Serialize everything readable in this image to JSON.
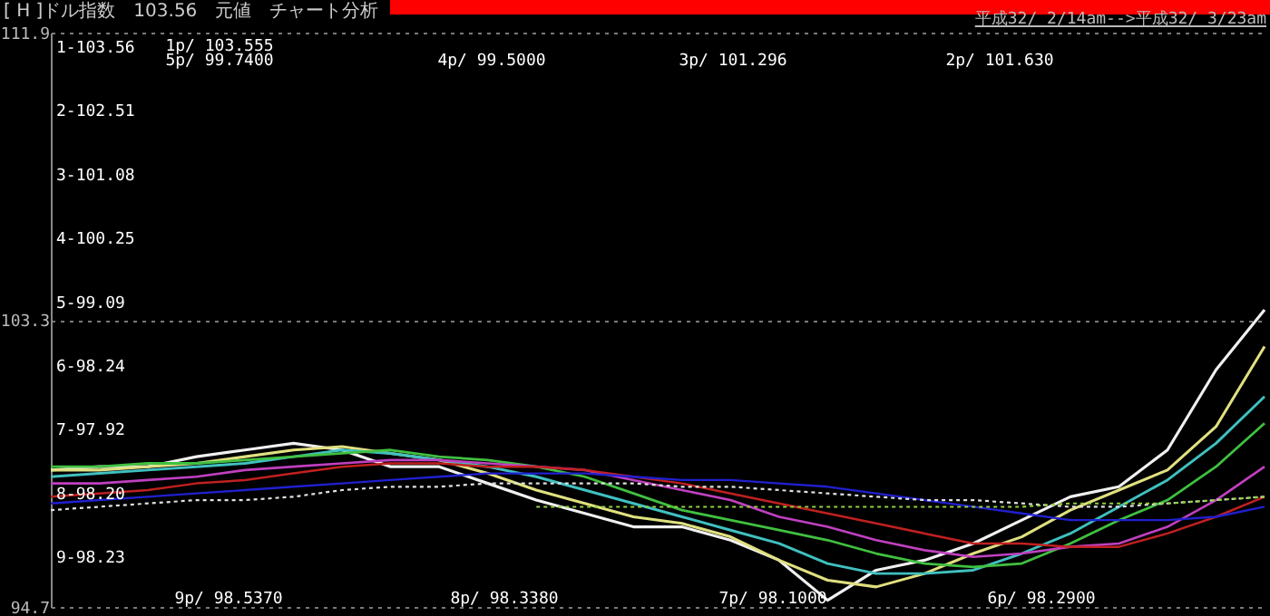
{
  "chart_data": {
    "type": "line",
    "title": "[ H ]ドル指数　103.56　元値　チャート分析",
    "subtitle": "平成32/ 2/14am-->平成32/ 3/23am",
    "categories": [
      null,
      null,
      null,
      null,
      null,
      null,
      null,
      null,
      null,
      null,
      null,
      null,
      null,
      null,
      null,
      null,
      null,
      null,
      null,
      null,
      null,
      null,
      null,
      null,
      null,
      null
    ],
    "series": [
      {
        "color": "#f0f0f0",
        "values": [
          98.8,
          98.9,
          98.9,
          99.2,
          99.4,
          99.6,
          99.4,
          98.9,
          98.9,
          98.4,
          97.9,
          97.5,
          97.1,
          97.1,
          96.7,
          96.1,
          94.9,
          95.8,
          96.1,
          96.6,
          97.3,
          98.0,
          98.3,
          99.4,
          101.8,
          103.6
        ]
      },
      {
        "color": "#e0e080",
        "values": [
          98.8,
          98.8,
          98.9,
          99.0,
          99.2,
          99.4,
          99.5,
          99.3,
          99.1,
          98.7,
          98.2,
          97.8,
          97.4,
          97.2,
          96.8,
          96.1,
          95.5,
          95.3,
          95.7,
          96.3,
          96.8,
          97.6,
          98.2,
          98.8,
          100.1,
          102.5
        ]
      },
      {
        "color": "#40c0c0",
        "values": [
          98.6,
          98.7,
          98.8,
          98.9,
          99.0,
          99.2,
          99.4,
          99.3,
          99.1,
          98.9,
          98.6,
          98.2,
          97.8,
          97.4,
          97.0,
          96.6,
          96.0,
          95.7,
          95.7,
          95.8,
          96.3,
          96.9,
          97.7,
          98.5,
          99.6,
          101.0
        ]
      },
      {
        "color": "#40c040",
        "values": [
          98.9,
          98.9,
          99.0,
          99.0,
          99.1,
          99.2,
          99.3,
          99.4,
          99.2,
          99.1,
          98.9,
          98.6,
          98.1,
          97.6,
          97.3,
          97.0,
          96.7,
          96.3,
          96.0,
          95.9,
          96.0,
          96.6,
          97.3,
          97.9,
          98.9,
          100.2
        ]
      },
      {
        "color": "#c040c0",
        "values": [
          98.4,
          98.4,
          98.5,
          98.6,
          98.8,
          98.9,
          99.0,
          99.1,
          99.1,
          99.0,
          98.9,
          98.8,
          98.5,
          98.2,
          97.9,
          97.4,
          97.1,
          96.7,
          96.4,
          96.2,
          96.3,
          96.5,
          96.6,
          97.1,
          97.9,
          98.9
        ]
      },
      {
        "color": "#c02020",
        "values": [
          98.0,
          98.1,
          98.2,
          98.4,
          98.5,
          98.7,
          98.9,
          99.0,
          99.0,
          98.9,
          98.9,
          98.8,
          98.6,
          98.4,
          98.1,
          97.8,
          97.5,
          97.2,
          96.9,
          96.6,
          96.6,
          96.5,
          96.5,
          96.9,
          97.4,
          98.0
        ]
      },
      {
        "color": "#2020d0",
        "values": [
          97.8,
          97.9,
          98.0,
          98.1,
          98.2,
          98.3,
          98.4,
          98.5,
          98.6,
          98.7,
          98.7,
          98.7,
          98.6,
          98.5,
          98.5,
          98.4,
          98.3,
          98.1,
          97.9,
          97.7,
          97.5,
          97.3,
          97.3,
          97.3,
          97.4,
          97.7
        ]
      },
      {
        "color": "#e0e0e0",
        "line_style": "dotted",
        "values": [
          97.6,
          97.7,
          97.8,
          97.9,
          97.9,
          98.0,
          98.2,
          98.3,
          98.3,
          98.4,
          98.4,
          98.4,
          98.4,
          98.3,
          98.3,
          98.2,
          98.1,
          98.0,
          97.9,
          97.9,
          97.8,
          97.7,
          97.7,
          97.8,
          97.9,
          98.0
        ]
      },
      {
        "color": "#90d040",
        "line_style": "dotted",
        "values": [
          null,
          null,
          null,
          null,
          null,
          null,
          null,
          null,
          null,
          null,
          97.7,
          97.7,
          97.7,
          97.7,
          97.7,
          97.7,
          97.7,
          97.7,
          97.7,
          97.7,
          97.7,
          97.8,
          97.8,
          97.8,
          97.9,
          98.0
        ]
      }
    ],
    "ylim": [
      94.7,
      111.9
    ],
    "yticks": [
      94.7,
      103.3,
      111.9
    ],
    "grid": "y",
    "annotations": [
      "1-103.56",
      "2-102.51",
      "3-101.08",
      "4-100.25",
      "5-99.09",
      "6-98.24",
      "7-97.92",
      "8-98.20",
      "9-98.23",
      "1p/ 103.555",
      "5p/ 99.7400",
      "4p/ 99.5000",
      "3p/ 101.296",
      "2p/ 101.630",
      "9p/ 98.5370",
      "8p/ 98.3380",
      "7p/ 98.1000",
      "6p/ 98.2900"
    ]
  }
}
